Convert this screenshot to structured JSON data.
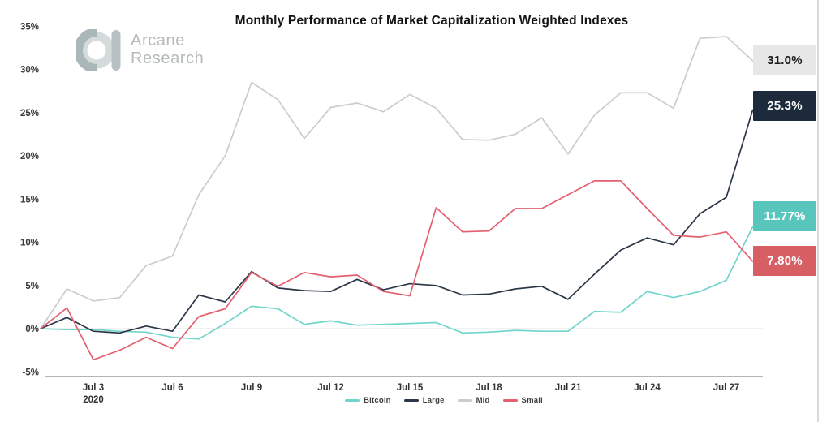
{
  "brand": {
    "line1": "Arcane",
    "line2": "Research"
  },
  "chart_data": {
    "type": "line",
    "title": "Monthly Performance of Market Capitalization Weighted Indexes",
    "x": [
      "Jul 1",
      "Jul 2",
      "Jul 3",
      "Jul 4",
      "Jul 5",
      "Jul 6",
      "Jul 7",
      "Jul 8",
      "Jul 9",
      "Jul 10",
      "Jul 11",
      "Jul 12",
      "Jul 13",
      "Jul 14",
      "Jul 15",
      "Jul 16",
      "Jul 17",
      "Jul 18",
      "Jul 19",
      "Jul 20",
      "Jul 21",
      "Jul 22",
      "Jul 23",
      "Jul 24",
      "Jul 25",
      "Jul 26",
      "Jul 27",
      "Jul 28"
    ],
    "x_tick_labels": [
      "Jul 3",
      "Jul 6",
      "Jul 9",
      "Jul 12",
      "Jul 15",
      "Jul 18",
      "Jul 21",
      "Jul 24",
      "Jul 27"
    ],
    "x_tick_indices": [
      2,
      5,
      8,
      11,
      14,
      17,
      20,
      23,
      26
    ],
    "x_year_label": "2020",
    "ylim": [
      -5,
      35
    ],
    "y_ticks": [
      {
        "label": "35%",
        "value": 35
      },
      {
        "label": "30%",
        "value": 30
      },
      {
        "label": "25%",
        "value": 25
      },
      {
        "label": "20%",
        "value": 20
      },
      {
        "label": "15%",
        "value": 15
      },
      {
        "label": "10%",
        "value": 10
      },
      {
        "label": "5%",
        "value": 5
      },
      {
        "label": "0%",
        "value": 0
      },
      {
        "label": "-5%",
        "value": -5
      }
    ],
    "grid": "horizontal zero line only",
    "legend_position": "bottom-center",
    "series": [
      {
        "name": "Bitcoin",
        "color": "#72d5cb",
        "end_label": "11.77%",
        "end_label_bg": "#59c6bd",
        "end_label_fg": "#ffffff",
        "values": [
          0,
          -0.1,
          -0.1,
          -0.3,
          -0.4,
          -1.0,
          -1.2,
          0.6,
          2.6,
          2.3,
          0.5,
          0.9,
          0.4,
          0.5,
          0.6,
          0.7,
          -0.5,
          -0.4,
          -0.2,
          -0.3,
          -0.3,
          2.0,
          1.9,
          4.3,
          3.6,
          4.3,
          5.6,
          11.77
        ]
      },
      {
        "name": "Large",
        "color": "#2b3748",
        "end_label": "25.3%",
        "end_label_bg": "#1d2a3c",
        "end_label_fg": "#ffffff",
        "values": [
          0,
          1.3,
          -0.3,
          -0.5,
          0.3,
          -0.3,
          3.9,
          3.1,
          6.6,
          4.7,
          4.4,
          4.3,
          5.7,
          4.5,
          5.2,
          5.0,
          3.9,
          4.0,
          4.6,
          4.9,
          3.4,
          6.3,
          9.1,
          10.5,
          9.7,
          13.3,
          15.2,
          25.3
        ]
      },
      {
        "name": "Mid",
        "color": "#cccccc",
        "end_label": "31.0%",
        "end_label_bg": "#e7e7e7",
        "end_label_fg": "#1a1a1a",
        "values": [
          0,
          4.6,
          3.2,
          3.6,
          7.3,
          8.4,
          15.5,
          20.0,
          28.5,
          26.5,
          22.0,
          25.6,
          26.1,
          25.1,
          27.1,
          25.5,
          21.9,
          21.8,
          22.5,
          24.4,
          20.2,
          24.7,
          27.3,
          27.3,
          25.5,
          33.6,
          33.8,
          31.0
        ]
      },
      {
        "name": "Small",
        "color": "#e4606e",
        "end_label": "7.80%",
        "end_label_bg": "#d75f64",
        "end_label_fg": "#ffffff",
        "values": [
          0,
          2.4,
          -3.6,
          -2.5,
          -1.0,
          -2.3,
          1.4,
          2.3,
          6.5,
          4.9,
          6.5,
          6.0,
          6.2,
          4.3,
          3.8,
          14.0,
          11.2,
          11.3,
          13.9,
          13.9,
          15.5,
          17.1,
          17.1,
          13.9,
          10.8,
          10.6,
          11.2,
          7.8
        ]
      }
    ]
  }
}
